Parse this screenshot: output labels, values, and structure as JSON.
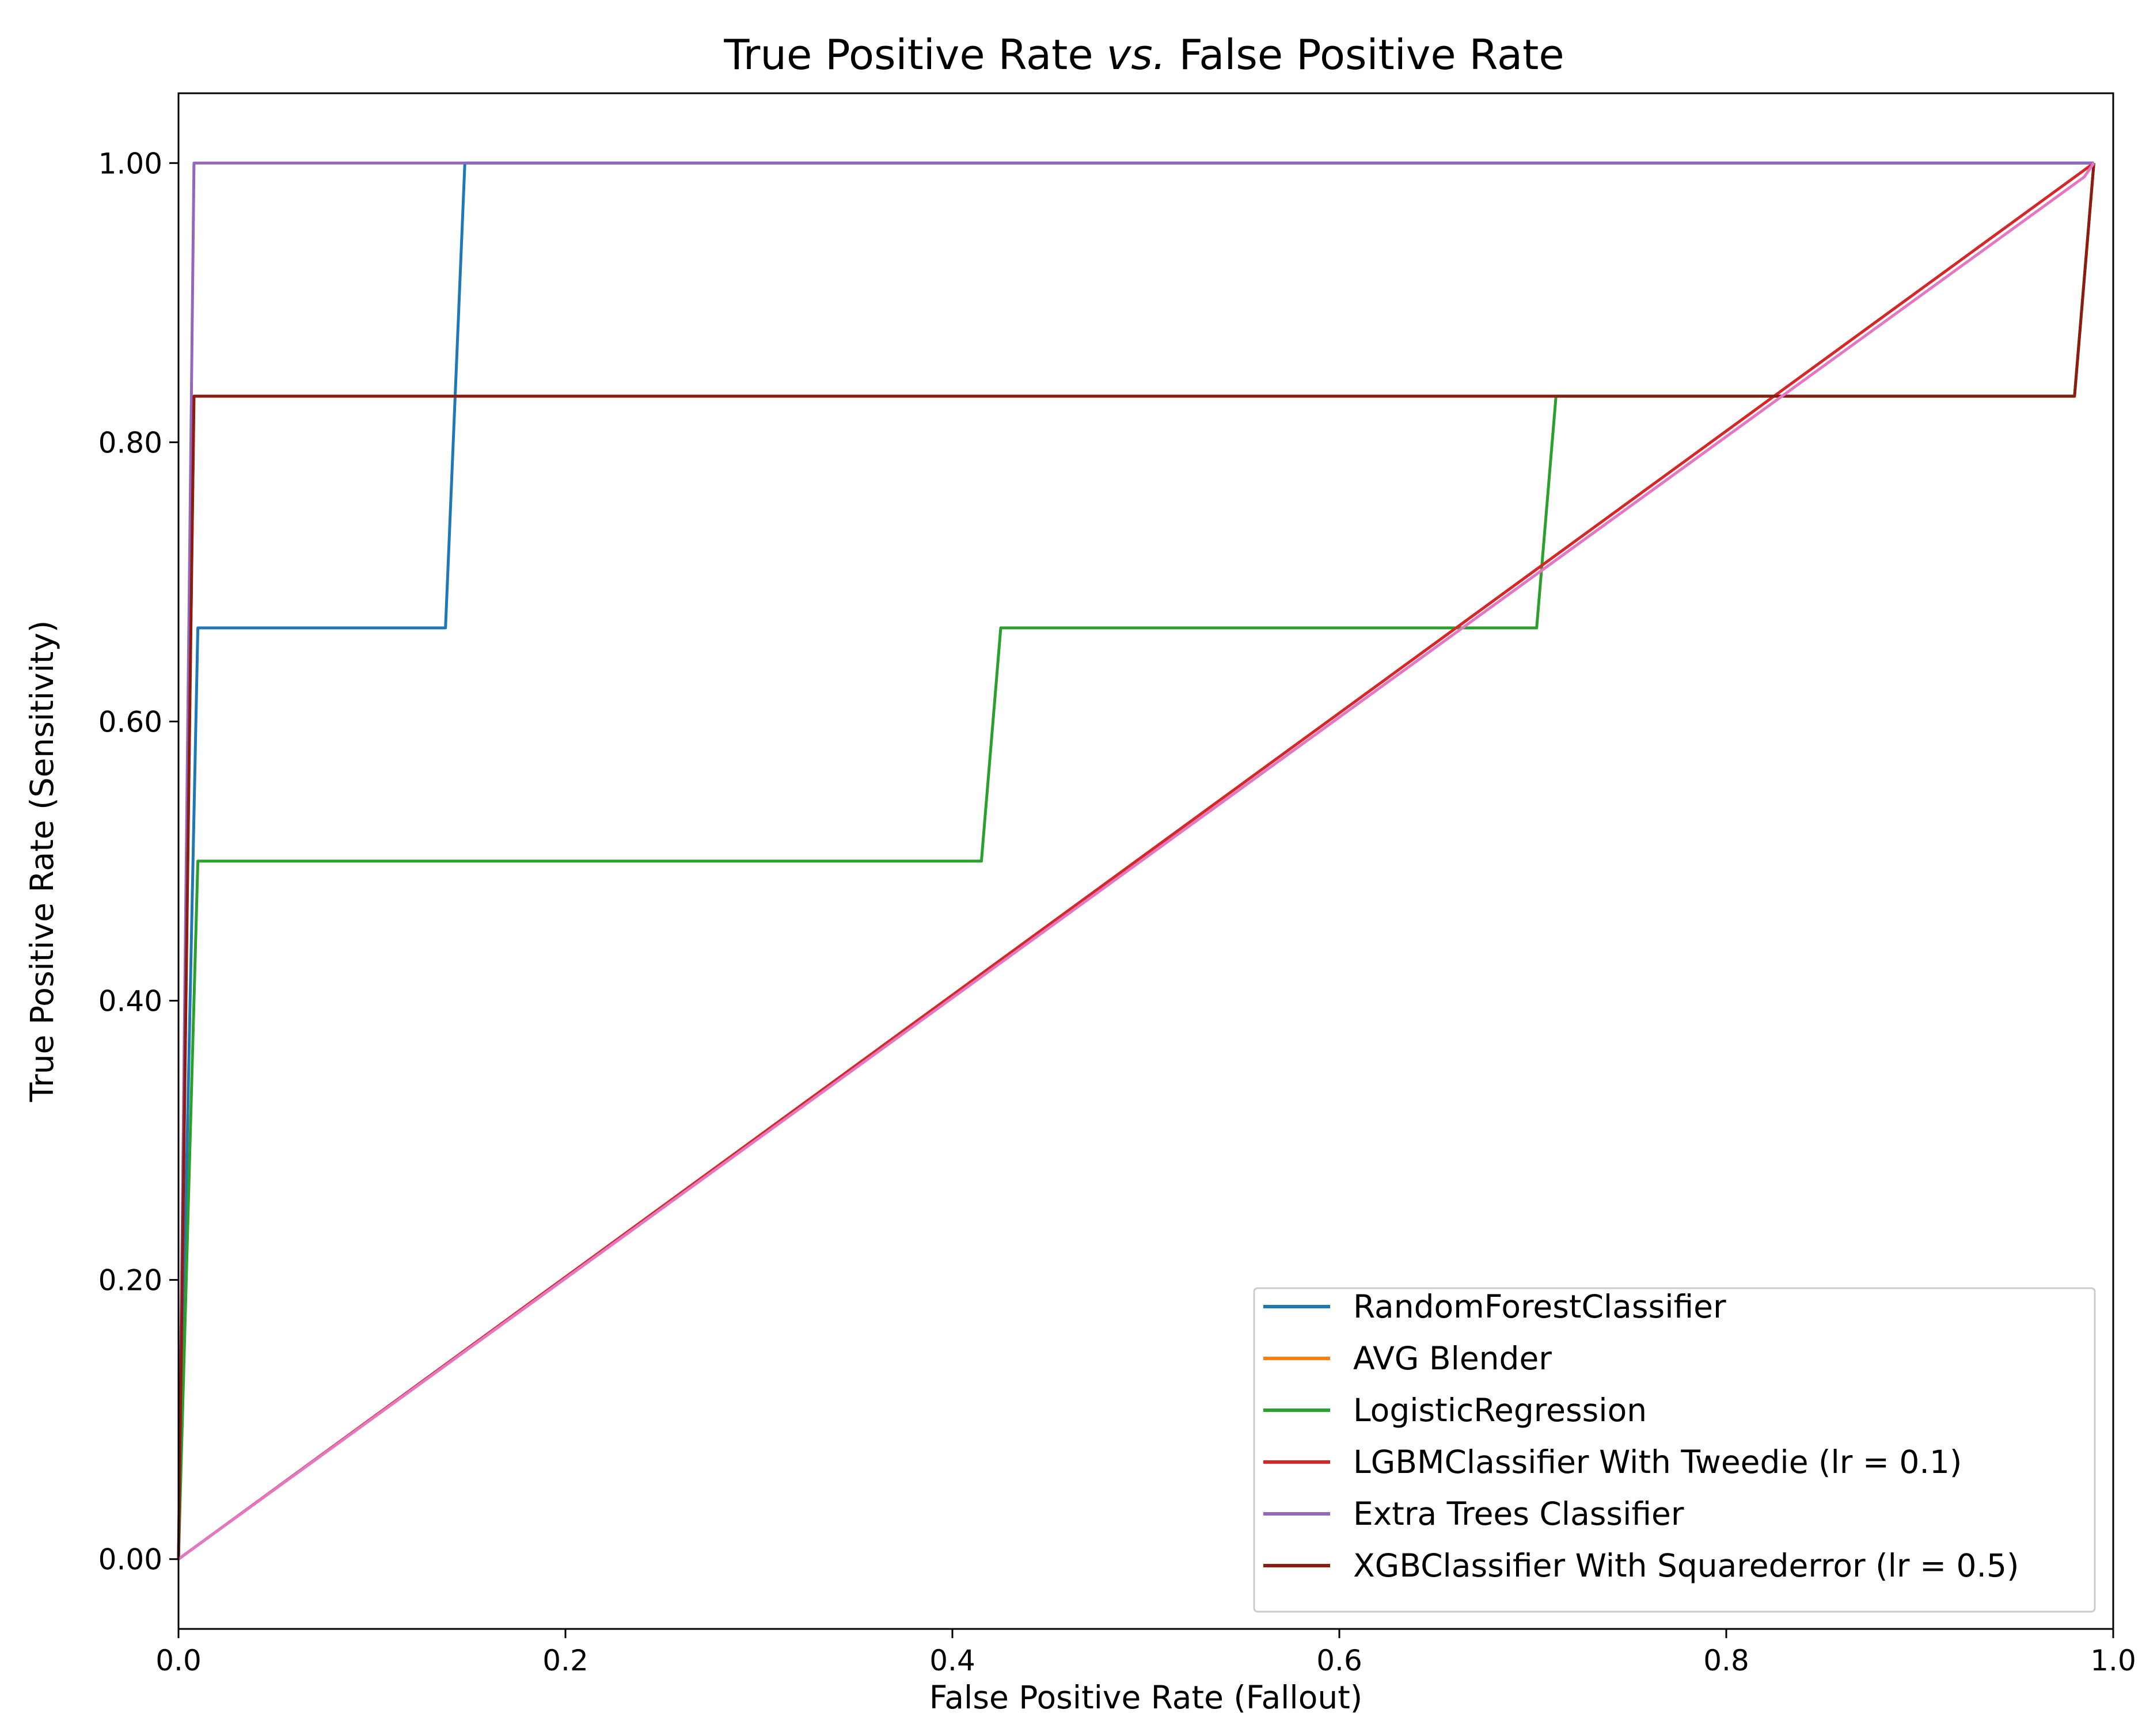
{
  "chart_data": {
    "type": "line",
    "title_parts": [
      "True Positive Rate ",
      "vs.",
      " False Positive Rate"
    ],
    "xlabel": "False Positive Rate (Fallout)",
    "ylabel": "True Positive Rate (Sensitivity)",
    "xlim": [
      0.0,
      1.0
    ],
    "ylim": [
      -0.05,
      1.05
    ],
    "x_ticks": [
      0.0,
      0.2,
      0.4,
      0.6,
      0.8,
      1.0
    ],
    "x_tick_labels": [
      "0.0",
      "0.2",
      "0.4",
      "0.6",
      "0.8",
      "1.0"
    ],
    "y_ticks": [
      0.0,
      0.2,
      0.4,
      0.6,
      0.8,
      1.0
    ],
    "y_tick_labels": [
      "0.00",
      "0.20",
      "0.40",
      "0.60",
      "0.80",
      "1.00"
    ],
    "grid": false,
    "legend_position": "lower-right",
    "series": [
      {
        "name": "RandomForestClassifier",
        "color": "#1f77b4",
        "x": [
          0.0,
          0.01,
          0.138,
          0.148,
          0.99
        ],
        "y": [
          0.0,
          0.667,
          0.667,
          1.0,
          1.0
        ]
      },
      {
        "name": "AVG Blender",
        "color": "#ff7f0e",
        "x": [
          0.0,
          0.008,
          0.98,
          0.99
        ],
        "y": [
          0.0,
          0.833,
          0.833,
          1.0
        ]
      },
      {
        "name": "LogisticRegression",
        "color": "#2ca02c",
        "x": [
          0.0,
          0.01,
          0.415,
          0.425,
          0.702,
          0.712,
          0.98,
          0.99
        ],
        "y": [
          0.0,
          0.5,
          0.5,
          0.667,
          0.667,
          0.833,
          0.833,
          1.0
        ]
      },
      {
        "name": "LGBMClassifier With Tweedie (lr = 0.1)",
        "color": "#d62728",
        "x": [
          0.0,
          0.99
        ],
        "y": [
          0.0,
          1.0
        ]
      },
      {
        "name": "Extra Trees Classifier",
        "color": "#9467bd",
        "x": [
          0.0,
          0.008,
          0.99
        ],
        "y": [
          0.0,
          1.0,
          1.0
        ]
      },
      {
        "name": "XGBClassifier With Squarederror (lr = 0.5)",
        "color": "#8c1c13",
        "x": [
          0.0,
          0.008,
          0.98,
          0.99
        ],
        "y": [
          0.0,
          0.833,
          0.833,
          1.0
        ]
      },
      {
        "color": "#e377c2",
        "x": [
          0.0,
          0.985,
          0.99
        ],
        "y": [
          0.0,
          0.99,
          1.0
        ]
      }
    ]
  }
}
